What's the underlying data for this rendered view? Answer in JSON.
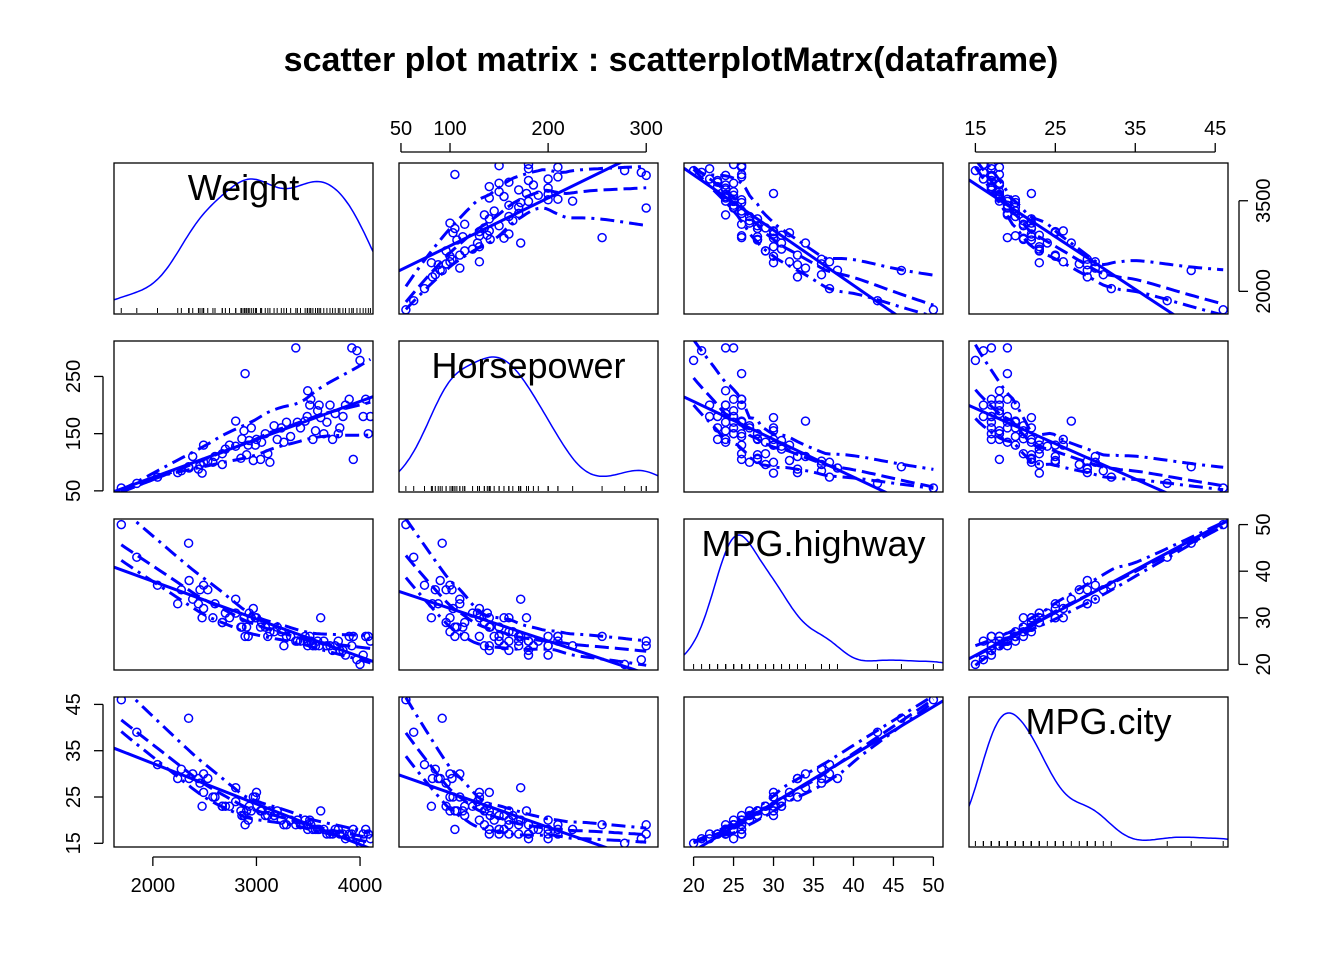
{
  "chart_data": {
    "type": "scatter",
    "title": "scatter plot matrix : scatterplotMatrx(dataframe)",
    "variables": [
      {
        "name": "Weight",
        "range": [
          1695,
          4105
        ],
        "ticks": [
          2000,
          3000,
          4000
        ],
        "tick_labels": [
          "2000",
          "3000",
          "4000"
        ]
      },
      {
        "name": "Horsepower",
        "range": [
          55,
          300
        ],
        "ticks": [
          50,
          100,
          200,
          300
        ],
        "tick_labels": [
          "50",
          "100",
          "200",
          "300"
        ],
        "ticks_right_panel": [
          50,
          150,
          250
        ],
        "tick_labels_right_panel": [
          "50",
          "150",
          "250"
        ]
      },
      {
        "name": "MPG.highway",
        "range": [
          20,
          50
        ],
        "ticks": [
          20,
          25,
          30,
          35,
          40,
          45,
          50
        ],
        "tick_labels": [
          "20",
          "25",
          "30",
          "35",
          "40",
          "45",
          "50"
        ],
        "ticks_right_panel": [
          20,
          30,
          40,
          50
        ],
        "tick_labels_right_panel": [
          "20",
          "30",
          "40",
          "50"
        ]
      },
      {
        "name": "MPG.city",
        "range": [
          15,
          46
        ],
        "ticks": [
          15,
          25,
          35,
          45
        ],
        "tick_labels": [
          "15",
          "25",
          "35",
          "45"
        ]
      }
    ],
    "weight_axis_right_ticks": [
      2000,
      3500
    ],
    "weight_axis_right_labels": [
      "2000",
      "3500"
    ],
    "color": "#0000ff",
    "observations": [
      [
        1695,
        55,
        50,
        46
      ],
      [
        1845,
        63,
        43,
        39
      ],
      [
        2045,
        74,
        37,
        32
      ],
      [
        2240,
        82,
        33,
        29
      ],
      [
        2345,
        92,
        46,
        42
      ],
      [
        2275,
        85,
        36,
        31
      ],
      [
        2350,
        90,
        38,
        29
      ],
      [
        2385,
        110,
        34,
        30
      ],
      [
        2455,
        96,
        36,
        28
      ],
      [
        2490,
        100,
        37,
        30
      ],
      [
        2530,
        102,
        36,
        29
      ],
      [
        2440,
        88,
        33,
        29
      ],
      [
        2490,
        130,
        32,
        26
      ],
      [
        2475,
        81,
        30,
        23
      ],
      [
        2580,
        100,
        30,
        25
      ],
      [
        2600,
        110,
        33,
        25
      ],
      [
        2670,
        96,
        29,
        23
      ],
      [
        2670,
        115,
        29,
        23
      ],
      [
        2700,
        123,
        31,
        23
      ],
      [
        2740,
        130,
        30,
        23
      ],
      [
        2800,
        172,
        34,
        27
      ],
      [
        2800,
        128,
        31,
        24
      ],
      [
        2850,
        107,
        28,
        22
      ],
      [
        2860,
        141,
        28,
        21
      ],
      [
        2880,
        155,
        30,
        21
      ],
      [
        2890,
        255,
        26,
        19
      ],
      [
        2905,
        113,
        28,
        22
      ],
      [
        2920,
        130,
        26,
        20
      ],
      [
        2930,
        138,
        31,
        23
      ],
      [
        2950,
        160,
        30,
        22
      ],
      [
        2970,
        103,
        32,
        25
      ],
      [
        2990,
        130,
        30,
        25
      ],
      [
        3000,
        140,
        30,
        26
      ],
      [
        3040,
        105,
        28,
        22
      ],
      [
        3050,
        135,
        29,
        22
      ],
      [
        3085,
        150,
        28,
        21
      ],
      [
        3110,
        115,
        26,
        21
      ],
      [
        3130,
        100,
        27,
        22
      ],
      [
        3170,
        164,
        27,
        21
      ],
      [
        3200,
        140,
        28,
        22
      ],
      [
        3240,
        160,
        27,
        20
      ],
      [
        3265,
        135,
        24,
        19
      ],
      [
        3290,
        170,
        26,
        19
      ],
      [
        3330,
        145,
        26,
        20
      ],
      [
        3380,
        300,
        25,
        19
      ],
      [
        3395,
        170,
        25,
        20
      ],
      [
        3425,
        160,
        25,
        19
      ],
      [
        3470,
        172,
        26,
        20
      ],
      [
        3490,
        180,
        25,
        19
      ],
      [
        3495,
        225,
        24,
        18
      ],
      [
        3515,
        200,
        26,
        20
      ],
      [
        3525,
        210,
        25,
        19
      ],
      [
        3545,
        140,
        24,
        18
      ],
      [
        3570,
        155,
        24,
        18
      ],
      [
        3590,
        190,
        25,
        18
      ],
      [
        3605,
        200,
        24,
        18
      ],
      [
        3620,
        178,
        30,
        22
      ],
      [
        3650,
        150,
        25,
        18
      ],
      [
        3680,
        170,
        24,
        17
      ],
      [
        3710,
        200,
        24,
        17
      ],
      [
        3735,
        140,
        23,
        17
      ],
      [
        3760,
        185,
        24,
        18
      ],
      [
        3790,
        150,
        25,
        18
      ],
      [
        3805,
        160,
        23,
        17
      ],
      [
        3835,
        180,
        23,
        17
      ],
      [
        3860,
        200,
        22,
        16
      ],
      [
        3895,
        210,
        26,
        17
      ],
      [
        3920,
        300,
        24,
        17
      ],
      [
        3935,
        105,
        26,
        18
      ],
      [
        3970,
        295,
        21,
        16
      ],
      [
        4000,
        278,
        20,
        15
      ],
      [
        4030,
        180,
        22,
        17
      ],
      [
        4055,
        210,
        26,
        18
      ],
      [
        4080,
        150,
        26,
        17
      ],
      [
        4100,
        180,
        25,
        16
      ]
    ]
  }
}
